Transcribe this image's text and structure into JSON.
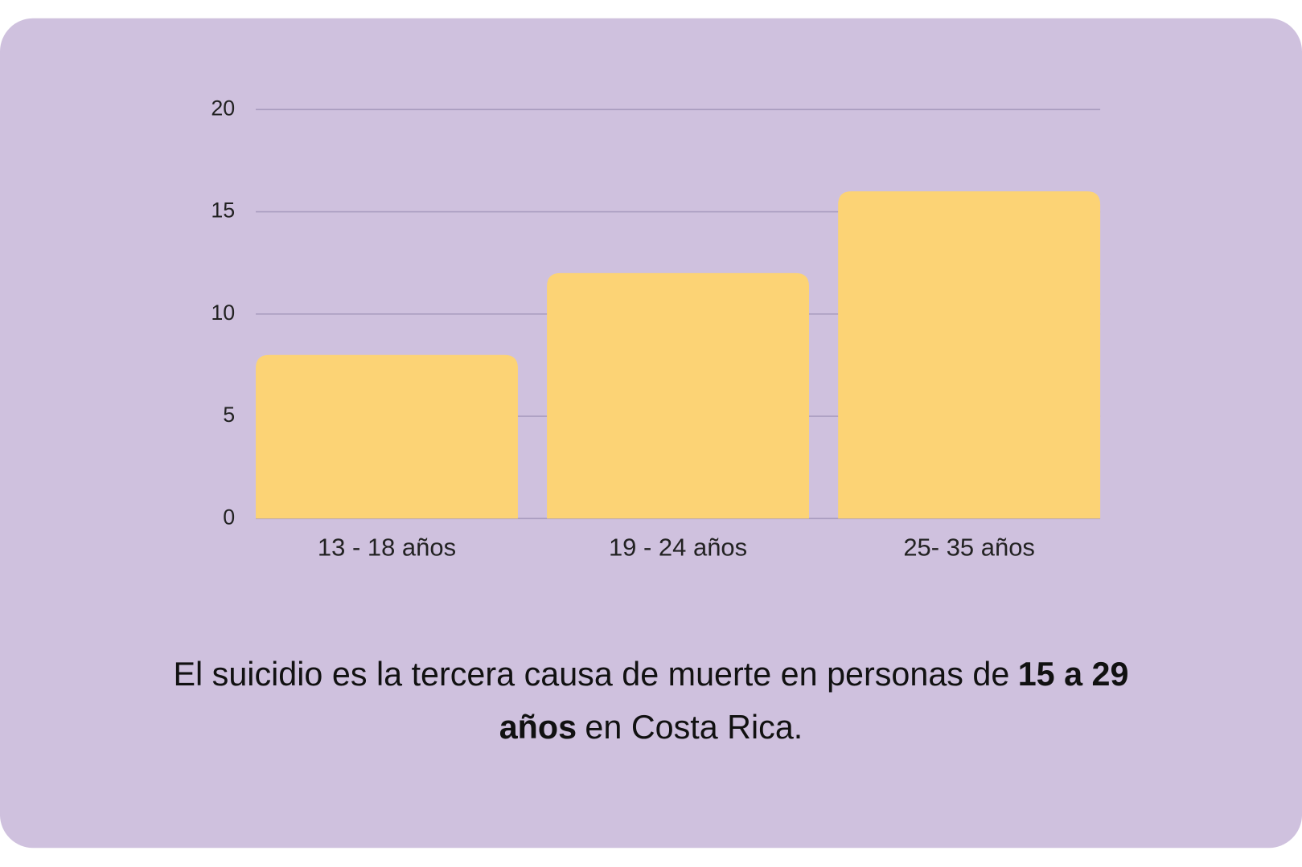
{
  "chart_data": {
    "type": "bar",
    "categories": [
      "13 - 18 años",
      "19 - 24 años",
      "25- 35 años"
    ],
    "values": [
      8,
      12,
      16
    ],
    "color": "#fcd375",
    "ylim": [
      0,
      20
    ],
    "yticks": [
      0,
      5,
      10,
      15,
      20
    ],
    "grid": true,
    "caption": [
      {
        "text": "El suicidio es la tercera causa de muerte en personas de",
        "bold": "15 a 29"
      },
      {
        "bold": "años",
        "text": "en Costa Rica."
      }
    ]
  }
}
